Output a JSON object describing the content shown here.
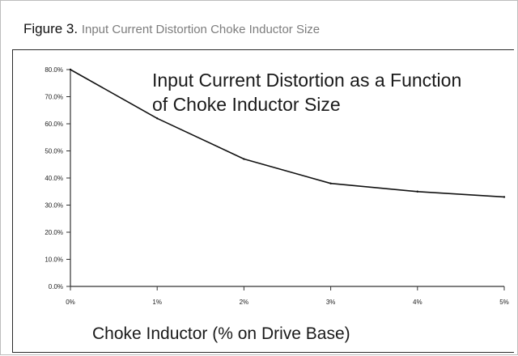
{
  "figure": {
    "label": "Figure 3.",
    "subtitle": "Input Current Distortion Choke Inductor Size"
  },
  "chart_data": {
    "type": "line",
    "title": "Input Current Distortion as a Function of Choke Inductor Size",
    "title_lines": [
      "Input Current Distortion as a Function",
      "of Choke Inductor Size"
    ],
    "xlabel": "Choke Inductor (% on Drive Base)",
    "ylabel": "",
    "x_ticks": [
      "0%",
      "1%",
      "2%",
      "3%",
      "4%",
      "5%"
    ],
    "y_ticks": [
      "0.0%",
      "10.0%",
      "20.0%",
      "30.0%",
      "40.0%",
      "50.0%",
      "60.0%",
      "70.0%",
      "80.0%"
    ],
    "xlim": [
      0,
      5
    ],
    "ylim": [
      0,
      80
    ],
    "grid": false,
    "series": [
      {
        "x": [
          0,
          1,
          2,
          3,
          4,
          5
        ],
        "values": [
          80,
          62,
          47,
          38,
          35,
          33
        ]
      }
    ],
    "colors": {
      "line": "#111111",
      "axis": "#333333",
      "text": "#222222"
    }
  }
}
